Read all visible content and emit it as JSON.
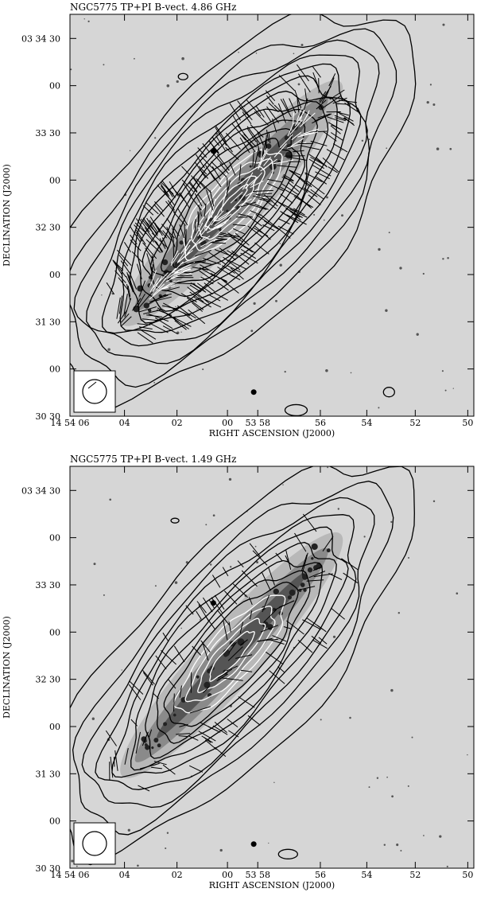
{
  "chart_data": [
    {
      "type": "contour",
      "title": "NGC5775 TP+PI B-vect. 4.86 GHz",
      "xlabel": "RIGHT ASCENSION (J2000)",
      "ylabel": "DECLINATION (J2000)",
      "x_tick_labels": [
        "14 54 06",
        "04",
        "02",
        "00",
        "53 58",
        "56",
        "54",
        "52",
        "50"
      ],
      "y_tick_labels": [
        "03 34 30",
        "00",
        "33 30",
        "00",
        "32 30",
        "00",
        "31 30",
        "00",
        "30 30"
      ],
      "contour_levels_count": 17,
      "beam": "circle (lower-left inset)",
      "background": "greyscale optical image",
      "vectors": "magnetic field B-vectors (dense)"
    },
    {
      "type": "contour",
      "title": "NGC5775 TP+PI B-vect. 1.49 GHz",
      "xlabel": "RIGHT ASCENSION (J2000)",
      "ylabel": "DECLINATION (J2000)",
      "x_tick_labels": [
        "14 54 06",
        "04",
        "02",
        "00",
        "53 58",
        "56",
        "54",
        "52",
        "50"
      ],
      "y_tick_labels": [
        "03 34 30",
        "00",
        "33 30",
        "00",
        "32 30",
        "00",
        "31 30",
        "00",
        "30 30"
      ],
      "contour_levels_count": 13,
      "beam": "circle (lower-left inset)",
      "background": "greyscale optical image",
      "vectors": "magnetic field B-vectors (sparse)"
    }
  ],
  "colors": {
    "contour": "#000000",
    "inner_contour": "#ffffff",
    "background": "#d6d6d6"
  }
}
